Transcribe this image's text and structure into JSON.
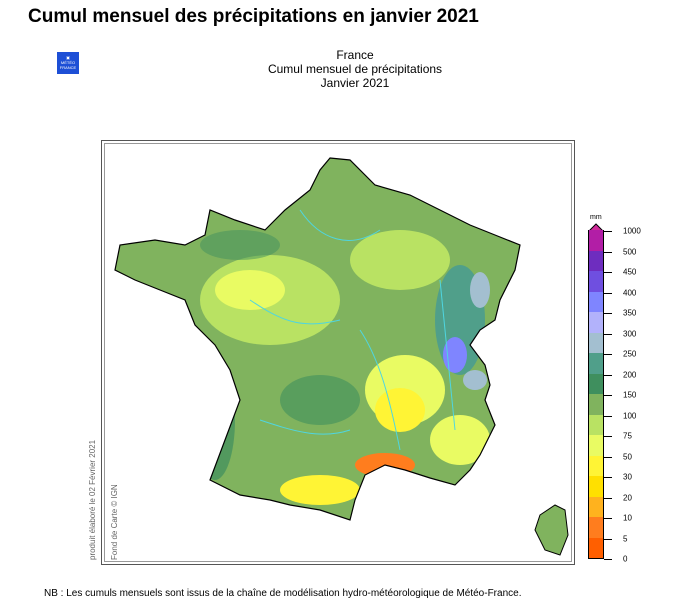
{
  "page_title": "Cumul mensuel des précipitations en janvier 2021",
  "logo_text": "MÉTÉO FRANCE",
  "map": {
    "title_lines": [
      "France",
      "Cumul mensuel de précipitations",
      "Janvier 2021"
    ],
    "credit_produced": "produit élaboré le 02 Février 2021",
    "credit_map": "Fond de Carte © IGN"
  },
  "legend": {
    "unit": "mm",
    "labels": [
      "1000",
      "500",
      "450",
      "400",
      "350",
      "300",
      "250",
      "200",
      "150",
      "100",
      "75",
      "50",
      "30",
      "20",
      "10",
      "5",
      "0"
    ],
    "colors": [
      "#b21ea6",
      "#6e2dbf",
      "#6f4fe0",
      "#7f85ff",
      "#b2b2fb",
      "#a3bfd0",
      "#509f8a",
      "#3f8f5e",
      "#80b35e",
      "#b9e263",
      "#e9fb63",
      "#fff435",
      "#ffe000",
      "#ffb21e",
      "#ff7d1e",
      "#ff5f00"
    ]
  },
  "footnote": "NB : Les cumuls mensuels sont issus de la chaîne de modélisation hydro-météorologique de Météo-France."
}
